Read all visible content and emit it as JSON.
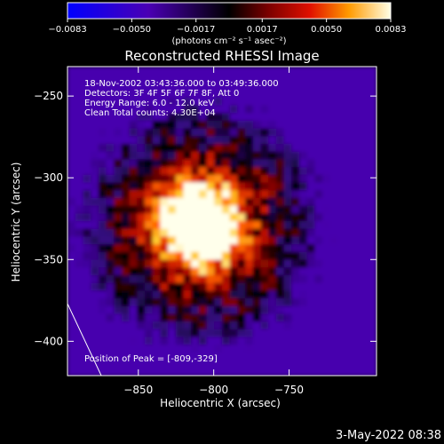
{
  "chart_data": {
    "type": "heatmap",
    "title": "Reconstructed RHESSI Image",
    "xlabel": "Heliocentric X (arcsec)",
    "ylabel": "Heliocentric Y (arcsec)",
    "xlim": [
      -897,
      -692
    ],
    "ylim": [
      -421,
      -232
    ],
    "xticks": [
      {
        "value": -850,
        "label": "−850"
      },
      {
        "value": -800,
        "label": "−800"
      },
      {
        "value": -750,
        "label": "−750"
      }
    ],
    "yticks": [
      {
        "value": -250,
        "label": "−250"
      },
      {
        "value": -300,
        "label": "−300"
      },
      {
        "value": -350,
        "label": "−350"
      },
      {
        "value": -400,
        "label": "−400"
      }
    ],
    "colorbar": {
      "min": -0.0083,
      "max": 0.0083,
      "units_label": "(photons cm⁻² s⁻¹ asec⁻²)",
      "ticks": [
        {
          "value": -0.0083,
          "label": "−0.0083"
        },
        {
          "value": -0.005,
          "label": "−0.0050"
        },
        {
          "value": -0.0017,
          "label": "−0.0017"
        },
        {
          "value": 0.0017,
          "label": "0.0017"
        },
        {
          "value": 0.005,
          "label": "0.0050"
        },
        {
          "value": 0.0083,
          "label": "0.0083"
        }
      ]
    },
    "peak": {
      "x": -809,
      "y": -329
    },
    "annotations": [
      "18-Nov-2002 03:43:36.000 to 03:49:36.000",
      "Detectors: 3F 4F 5F 6F 7F 8F, Att 0",
      "Energy Range: 6.0 - 12.0 keV",
      "Clean     Total counts: 4.30E+04"
    ],
    "peak_label": "Position of Peak = [-809,-329]",
    "grid": false
  },
  "footer_date": "3-May-2022 08:38"
}
